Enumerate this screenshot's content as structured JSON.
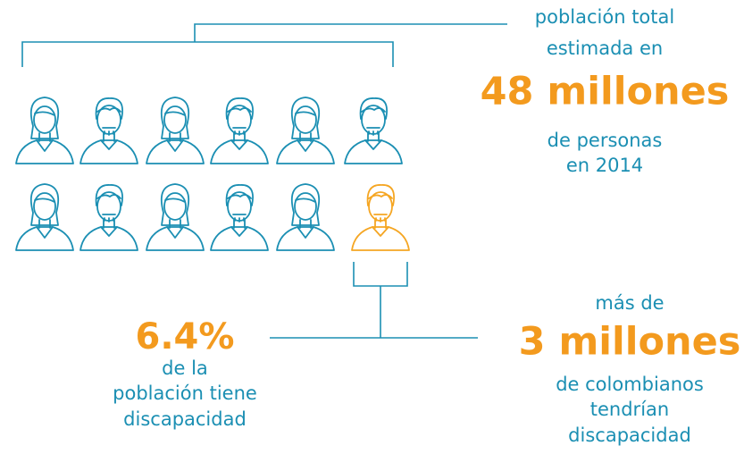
{
  "top_callout": {
    "lines_before": [
      "población total",
      "estimada en"
    ],
    "highlight": "48 millones",
    "lines_after": [
      "de personas",
      "en 2014"
    ]
  },
  "left_callout": {
    "highlight": "6.4%",
    "lines_after": [
      "de la",
      "población tiene",
      "discapacidad"
    ]
  },
  "right_callout": {
    "lines_before": [
      "más de"
    ],
    "highlight": "3 millones",
    "lines_after": [
      "de colombianos",
      "tendrían",
      "discapacidad"
    ]
  }
}
